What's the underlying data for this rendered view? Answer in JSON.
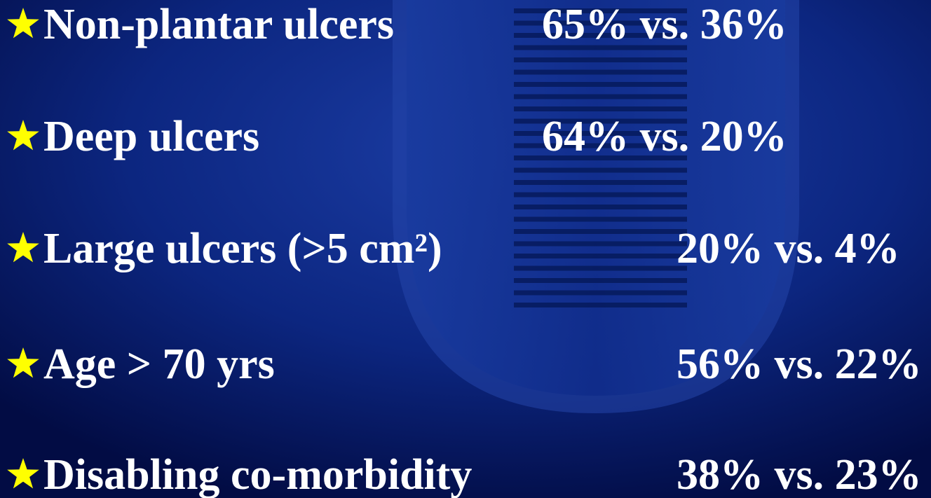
{
  "items": [
    {
      "label": "Non-plantar ulcers",
      "value": "65% vs. 36%"
    },
    {
      "label": "Deep ulcers",
      "value": "64% vs. 20%"
    },
    {
      "label": "Large ulcers (>5 cm²)",
      "value": "20% vs. 4%"
    },
    {
      "label": "Age > 70 yrs",
      "value": "56% vs. 22%"
    },
    {
      "label": "Disabling co-morbidity",
      "value": "38% vs. 23%"
    }
  ]
}
